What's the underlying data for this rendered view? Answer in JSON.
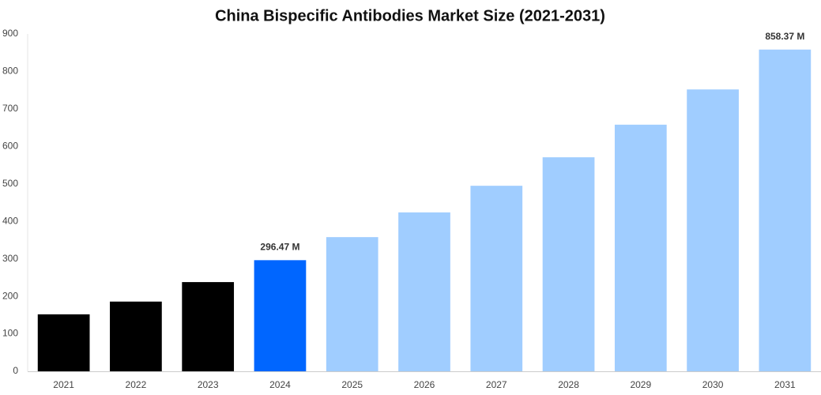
{
  "chart_data": {
    "type": "bar",
    "title": "China Bispecific Antibodies Market Size (2021-2031)",
    "categories": [
      "2021",
      "2022",
      "2023",
      "2024",
      "2025",
      "2026",
      "2027",
      "2028",
      "2029",
      "2030",
      "2031"
    ],
    "values": [
      152,
      186,
      238,
      296.47,
      358,
      424,
      495,
      571,
      658,
      752,
      858.37
    ],
    "value_labels": [
      null,
      null,
      null,
      "296.47 M",
      null,
      null,
      null,
      null,
      null,
      null,
      "858.37 M"
    ],
    "colors": [
      "#000000",
      "#000000",
      "#000000",
      "#0066ff",
      "#a0cdff",
      "#a0cdff",
      "#a0cdff",
      "#a0cdff",
      "#a0cdff",
      "#a0cdff",
      "#a0cdff"
    ],
    "ylim": [
      0,
      900
    ],
    "yticks": [
      0,
      100,
      200,
      300,
      400,
      500,
      600,
      700,
      800,
      900
    ],
    "grid": false
  }
}
